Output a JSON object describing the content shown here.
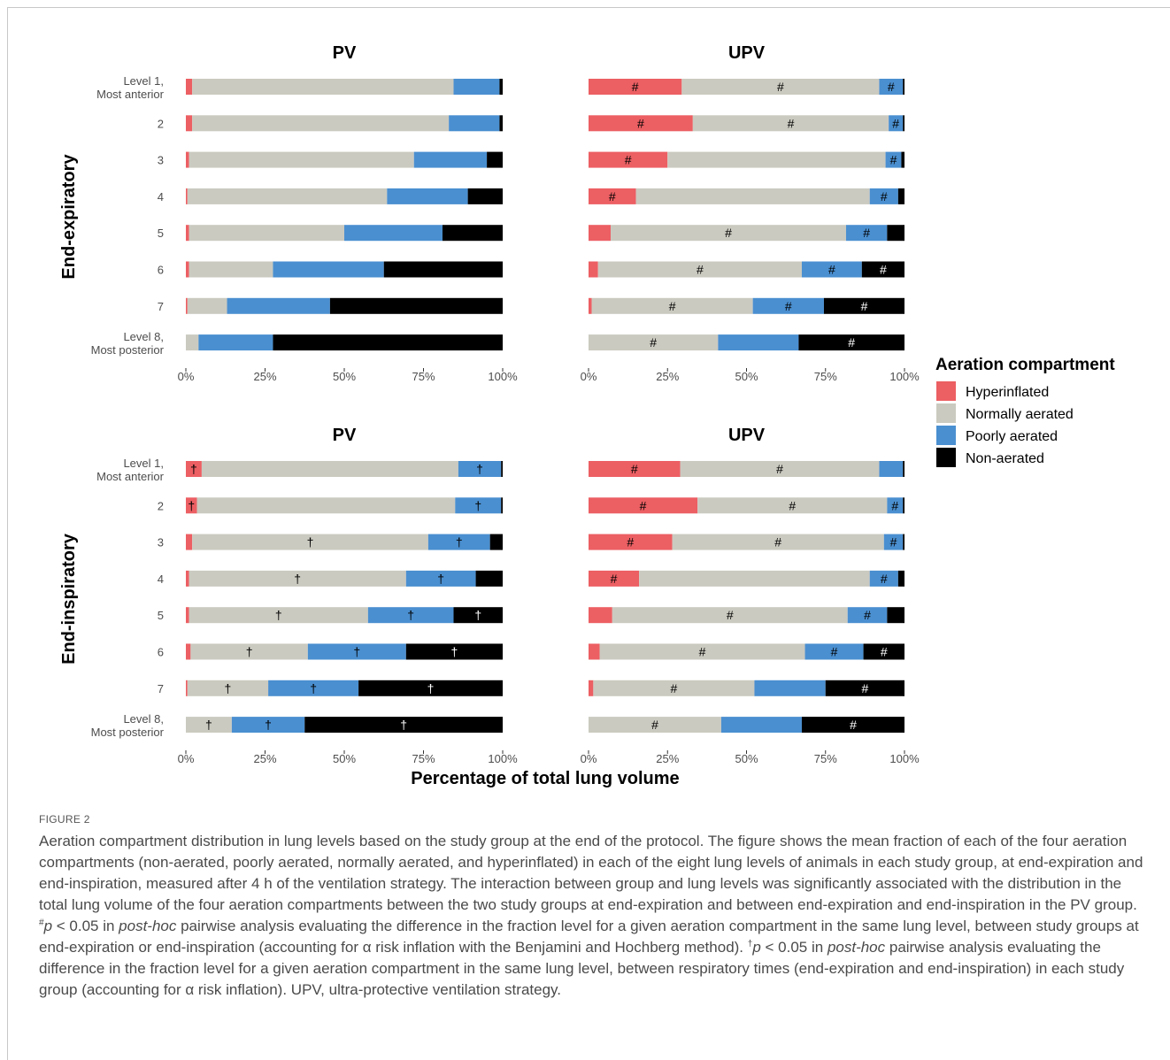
{
  "colors": {
    "Hyperinflated": "#ec5f63",
    "Normally aerated": "#cbcac0",
    "Poorly aerated": "#4a8fd0",
    "Non-aerated": "#000000"
  },
  "legend": {
    "title": "Aeration compartment",
    "items": [
      "Hyperinflated",
      "Normally aerated",
      "Poorly aerated",
      "Non-aerated"
    ]
  },
  "x_axis_title": "Percentage of total lung volume",
  "row_titles": [
    "End-expiratory",
    "End-inspiratory"
  ],
  "caption": {
    "label": "FIGURE 2",
    "part1": "Aeration compartment distribution in lung levels based on the study group at the end of the protocol. The figure shows the mean fraction of each of the four aeration compartments (non-aerated, poorly aerated, normally aerated, and hyperinflated) in each of the eight lung levels of animals in each study group, at end-expiration and end-inspiration, measured after 4 h of the ventilation strategy. The interaction between group and lung levels was significantly associated with the distribution in the total lung volume of the four aeration compartments between the two study groups at end-expiration and between end-expiration and end-inspiration in the PV group. ",
    "hash_sym": "#",
    "p1": "p",
    "lt1": " < 0.05 in ",
    "posthoc1": "post-hoc",
    "part2": " pairwise analysis evaluating the difference in the fraction level for a given aeration compartment in the same lung level, between study groups at end-expiration or end-inspiration (accounting for α risk inflation with the Benjamini and Hochberg method). ",
    "dagger_sym": "†",
    "p2": "p",
    "lt2": " < 0.05 in ",
    "posthoc2": "post-hoc",
    "part3": " pairwise analysis evaluating the difference in the fraction level for a given aeration compartment in the same lung level, between respiratory times (end-expiration and end-inspiration) in each study group (accounting for α risk inflation). UPV, ultra-protective ventilation strategy."
  },
  "chart_data": [
    {
      "type": "bar",
      "orientation": "horizontal-stacked",
      "title": "PV",
      "row": "End-expiratory",
      "categories": [
        "Level 1,\nMost anterior",
        "2",
        "3",
        "4",
        "5",
        "6",
        "7",
        "Level 8,\nMost posterior"
      ],
      "xlim": [
        0,
        100
      ],
      "ticks": [
        "0%",
        "25%",
        "50%",
        "75%",
        "100%"
      ],
      "series": [
        {
          "name": "Hyperinflated",
          "values": [
            2,
            2,
            1,
            0.5,
            1,
            1,
            0.5,
            0
          ]
        },
        {
          "name": "Normally aerated",
          "values": [
            82.5,
            81,
            71,
            63,
            49,
            26.5,
            12.5,
            4
          ]
        },
        {
          "name": "Poorly aerated",
          "values": [
            14.5,
            16,
            23,
            25.5,
            31,
            35,
            32.5,
            23.5
          ]
        },
        {
          "name": "Non-aerated",
          "values": [
            1,
            1,
            5,
            11,
            19,
            37.5,
            54.5,
            72.5
          ]
        }
      ],
      "markers": [
        [],
        [],
        [],
        [],
        [],
        [],
        [],
        []
      ]
    },
    {
      "type": "bar",
      "orientation": "horizontal-stacked",
      "title": "UPV",
      "row": "End-expiratory",
      "categories": [
        "Level 1,\nMost anterior",
        "2",
        "3",
        "4",
        "5",
        "6",
        "7",
        "Level 8,\nMost posterior"
      ],
      "xlim": [
        0,
        100
      ],
      "ticks": [
        "0%",
        "25%",
        "50%",
        "75%",
        "100%"
      ],
      "series": [
        {
          "name": "Hyperinflated",
          "values": [
            29.5,
            33,
            25,
            15,
            7,
            3,
            1,
            0
          ]
        },
        {
          "name": "Normally aerated",
          "values": [
            62.5,
            62,
            69,
            74,
            74.5,
            64.5,
            51,
            41
          ]
        },
        {
          "name": "Poorly aerated",
          "values": [
            7.5,
            4.5,
            5,
            9,
            13,
            19,
            22.5,
            25.5
          ]
        },
        {
          "name": "Non-aerated",
          "values": [
            0.5,
            0.5,
            1,
            2,
            5.5,
            13.5,
            25.5,
            33.5
          ]
        }
      ],
      "markers": [
        [
          "#",
          "#",
          "#",
          ""
        ],
        [
          "#",
          "#",
          "#",
          ""
        ],
        [
          "#",
          "",
          "#",
          ""
        ],
        [
          "#",
          "",
          "#",
          ""
        ],
        [
          "",
          "#",
          "#",
          ""
        ],
        [
          "",
          "#",
          "#",
          "#"
        ],
        [
          "",
          "#",
          "#",
          "#"
        ],
        [
          "",
          "#",
          "",
          "#"
        ]
      ]
    },
    {
      "type": "bar",
      "orientation": "horizontal-stacked",
      "title": "PV",
      "row": "End-inspiratory",
      "categories": [
        "Level 1,\nMost anterior",
        "2",
        "3",
        "4",
        "5",
        "6",
        "7",
        "Level 8,\nMost posterior"
      ],
      "xlim": [
        0,
        100
      ],
      "ticks": [
        "0%",
        "25%",
        "50%",
        "75%",
        "100%"
      ],
      "series": [
        {
          "name": "Hyperinflated",
          "values": [
            5,
            3.5,
            2,
            1,
            1,
            1.5,
            0.5,
            0
          ]
        },
        {
          "name": "Normally aerated",
          "values": [
            81,
            81.5,
            74.5,
            68.5,
            56.5,
            37,
            25.5,
            14.5
          ]
        },
        {
          "name": "Poorly aerated",
          "values": [
            13.5,
            14.5,
            19.5,
            22,
            27,
            31,
            28.5,
            23
          ]
        },
        {
          "name": "Non-aerated",
          "values": [
            0.5,
            0.5,
            4,
            8.5,
            15.5,
            30.5,
            45.5,
            62.5
          ]
        }
      ],
      "markers": [
        [
          "†",
          "",
          "†",
          ""
        ],
        [
          "†",
          "",
          "†",
          ""
        ],
        [
          "",
          "†",
          "†",
          ""
        ],
        [
          "",
          "†",
          "†",
          ""
        ],
        [
          "",
          "†",
          "†",
          "†"
        ],
        [
          "",
          "†",
          "†",
          "†"
        ],
        [
          "",
          "†",
          "†",
          "†"
        ],
        [
          "",
          "†",
          "†",
          "†"
        ]
      ]
    },
    {
      "type": "bar",
      "orientation": "horizontal-stacked",
      "title": "UPV",
      "row": "End-inspiratory",
      "categories": [
        "Level 1,\nMost anterior",
        "2",
        "3",
        "4",
        "5",
        "6",
        "7",
        "Level 8,\nMost posterior"
      ],
      "xlim": [
        0,
        100
      ],
      "ticks": [
        "0%",
        "25%",
        "50%",
        "75%",
        "100%"
      ],
      "series": [
        {
          "name": "Hyperinflated",
          "values": [
            29,
            34.5,
            26.5,
            16,
            7.5,
            3.5,
            1.5,
            0
          ]
        },
        {
          "name": "Normally aerated",
          "values": [
            63,
            60,
            67,
            73,
            74.5,
            65,
            51,
            42
          ]
        },
        {
          "name": "Poorly aerated",
          "values": [
            7.5,
            5,
            6,
            9,
            12.5,
            18.5,
            22.5,
            25.5
          ]
        },
        {
          "name": "Non-aerated",
          "values": [
            0.5,
            0.5,
            0.5,
            2,
            5.5,
            13,
            25,
            32.5
          ]
        }
      ],
      "markers": [
        [
          "#",
          "#",
          "",
          ""
        ],
        [
          "#",
          "#",
          "#",
          ""
        ],
        [
          "#",
          "#",
          "#",
          ""
        ],
        [
          "#",
          "",
          "#",
          ""
        ],
        [
          "",
          "#",
          "#",
          ""
        ],
        [
          "",
          "#",
          "#",
          "#"
        ],
        [
          "",
          "#",
          "",
          "#"
        ],
        [
          "",
          "#",
          "",
          "#"
        ]
      ]
    }
  ]
}
